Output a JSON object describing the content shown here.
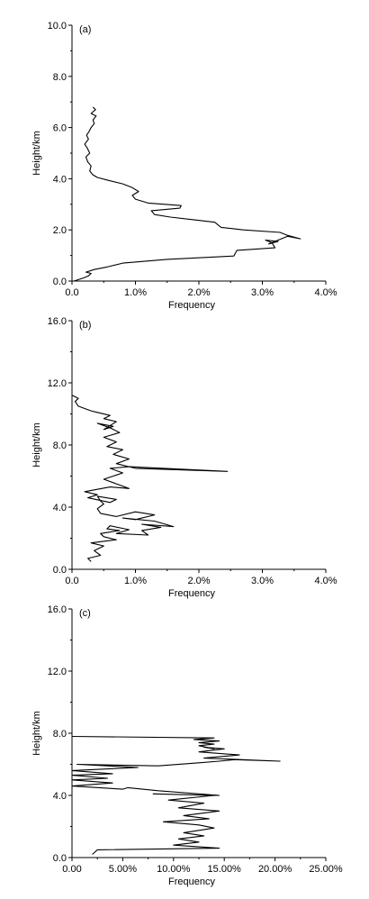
{
  "chart_data": [
    {
      "type": "line",
      "panel_label": "(a)",
      "xlabel": "Frequency",
      "ylabel": "Height/km",
      "xlim": [
        0,
        4
      ],
      "ylim": [
        0,
        10
      ],
      "x_unit": "%",
      "xticks": [
        "0.0",
        "1.0%",
        "2.0%",
        "3.0%",
        "4.0%"
      ],
      "yticks": [
        "0.0",
        "2.0",
        "4.0",
        "6.0",
        "8.0",
        "10.0"
      ],
      "series": [
        {
          "x": [
            0.03,
            0.18,
            0.26,
            0.3,
            0.22,
            0.35,
            0.55,
            0.8,
            1.5,
            2.55,
            2.6,
            3.2,
            3.15,
            3.05,
            3.25,
            3.1,
            3.4,
            3.6,
            3.38,
            3.28,
            2.7,
            2.35,
            2.25,
            1.9,
            1.55,
            1.3,
            1.25,
            1.7,
            1.72,
            1.2,
            1.0,
            0.95,
            1.05,
            0.95,
            0.8,
            0.55,
            0.4,
            0.33,
            0.28,
            0.3,
            0.25,
            0.22,
            0.28,
            0.24,
            0.2,
            0.26,
            0.23,
            0.27,
            0.3,
            0.35,
            0.33,
            0.38,
            0.3,
            0.37,
            0.33
          ],
          "y": [
            0.0,
            0.12,
            0.2,
            0.3,
            0.35,
            0.45,
            0.55,
            0.7,
            0.85,
            0.98,
            1.2,
            1.3,
            1.5,
            1.6,
            1.55,
            1.45,
            1.75,
            1.65,
            1.8,
            1.9,
            2.0,
            2.1,
            2.3,
            2.4,
            2.5,
            2.6,
            2.75,
            2.85,
            2.95,
            3.05,
            3.2,
            3.35,
            3.5,
            3.65,
            3.8,
            3.95,
            4.05,
            4.15,
            4.3,
            4.5,
            4.65,
            4.85,
            5.0,
            5.2,
            5.35,
            5.55,
            5.7,
            5.85,
            6.0,
            6.15,
            6.3,
            6.45,
            6.55,
            6.7,
            6.8
          ]
        }
      ]
    },
    {
      "type": "line",
      "panel_label": "(b)",
      "xlabel": "Frequency",
      "ylabel": "Height/km",
      "xlim": [
        0,
        4
      ],
      "ylim": [
        0,
        16
      ],
      "x_unit": "%",
      "xticks": [
        "0.0",
        "1.0%",
        "2.0%",
        "3.0%",
        "4.0%"
      ],
      "yticks": [
        "0.0",
        "4.0",
        "8.0",
        "12.0",
        "16.0"
      ],
      "series": [
        {
          "x": [
            0.3,
            0.25,
            0.45,
            0.35,
            0.5,
            0.3,
            0.7,
            0.5,
            0.45,
            0.75,
            0.55,
            0.6,
            0.9,
            0.7,
            1.2,
            1.1,
            1.4,
            1.1,
            1.6,
            1.3,
            0.8,
            1.0,
            1.3,
            1.0,
            0.7,
            0.45,
            0.4,
            0.5,
            0.45,
            0.4,
            0.7,
            0.6,
            0.25,
            0.4,
            0.2,
            0.6,
            0.9,
            0.7,
            0.5,
            0.8,
            0.6,
            0.9,
            2.45,
            1.0,
            0.7,
            0.9,
            0.65,
            0.8,
            0.55,
            0.7,
            0.5,
            0.75,
            0.6,
            0.4,
            0.65,
            0.5,
            0.7,
            0.5,
            0.6,
            0.4,
            0.3,
            0.1,
            0.05,
            0.1,
            0.0
          ],
          "y": [
            0.5,
            0.7,
            0.9,
            1.2,
            1.5,
            1.7,
            1.9,
            2.1,
            2.3,
            2.5,
            2.6,
            2.8,
            2.55,
            2.3,
            2.2,
            2.5,
            2.7,
            2.9,
            2.75,
            3.1,
            3.3,
            3.2,
            3.5,
            3.7,
            3.4,
            3.6,
            3.9,
            4.2,
            4.4,
            4.7,
            4.5,
            4.3,
            4.6,
            4.8,
            5.0,
            5.3,
            5.2,
            5.5,
            5.8,
            6.2,
            6.5,
            6.6,
            6.3,
            6.5,
            6.8,
            7.1,
            7.4,
            7.7,
            7.9,
            8.2,
            8.5,
            8.8,
            9.1,
            9.4,
            9.2,
            9.0,
            9.5,
            9.7,
            9.9,
            10.1,
            10.2,
            10.5,
            10.8,
            11.0,
            11.2
          ]
        }
      ]
    },
    {
      "type": "line",
      "panel_label": "(c)",
      "xlabel": "Frequency",
      "ylabel": "Height/km",
      "xlim": [
        0,
        25
      ],
      "ylim": [
        0,
        16
      ],
      "x_unit": "%",
      "xticks": [
        "0.00",
        "5.00%",
        "10.00%",
        "15.00%",
        "20.00%",
        "25.00%"
      ],
      "yticks": [
        "0.0",
        "4.0",
        "8.0",
        "12.0",
        "16.0"
      ],
      "series": [
        {
          "x": [
            2.0,
            2.5,
            14.5,
            10.0,
            12.5,
            10.5,
            13.0,
            11.0,
            14.0,
            12.5,
            9.0,
            13.5,
            11.0,
            14.5,
            10.5,
            13.0,
            9.5,
            14.0,
            8.0,
            14.5,
            8.5,
            5.5,
            5.0,
            0.0,
            4.0,
            0.0,
            3.5,
            0.0,
            4.0,
            0.0,
            6.5,
            3.5,
            0.5,
            8.5,
            12.5,
            14.5,
            16.0,
            20.5,
            13.0,
            16.5,
            12.5,
            15.0,
            13.0,
            14.0,
            12.5,
            14.0,
            12.5,
            14.5,
            12.0,
            14.0,
            0.0
          ],
          "y": [
            0.2,
            0.5,
            0.6,
            0.8,
            1.0,
            1.2,
            1.4,
            1.6,
            1.9,
            2.1,
            2.3,
            2.5,
            2.7,
            3.0,
            3.2,
            3.5,
            3.7,
            4.0,
            4.1,
            4.0,
            4.3,
            4.5,
            4.4,
            4.6,
            4.8,
            5.0,
            5.1,
            5.3,
            5.4,
            5.6,
            5.8,
            5.9,
            6.0,
            5.9,
            6.1,
            6.2,
            6.3,
            6.2,
            6.4,
            6.6,
            6.8,
            7.0,
            7.1,
            7.0,
            7.2,
            7.3,
            7.4,
            7.5,
            7.6,
            7.7,
            7.8
          ]
        }
      ]
    }
  ]
}
